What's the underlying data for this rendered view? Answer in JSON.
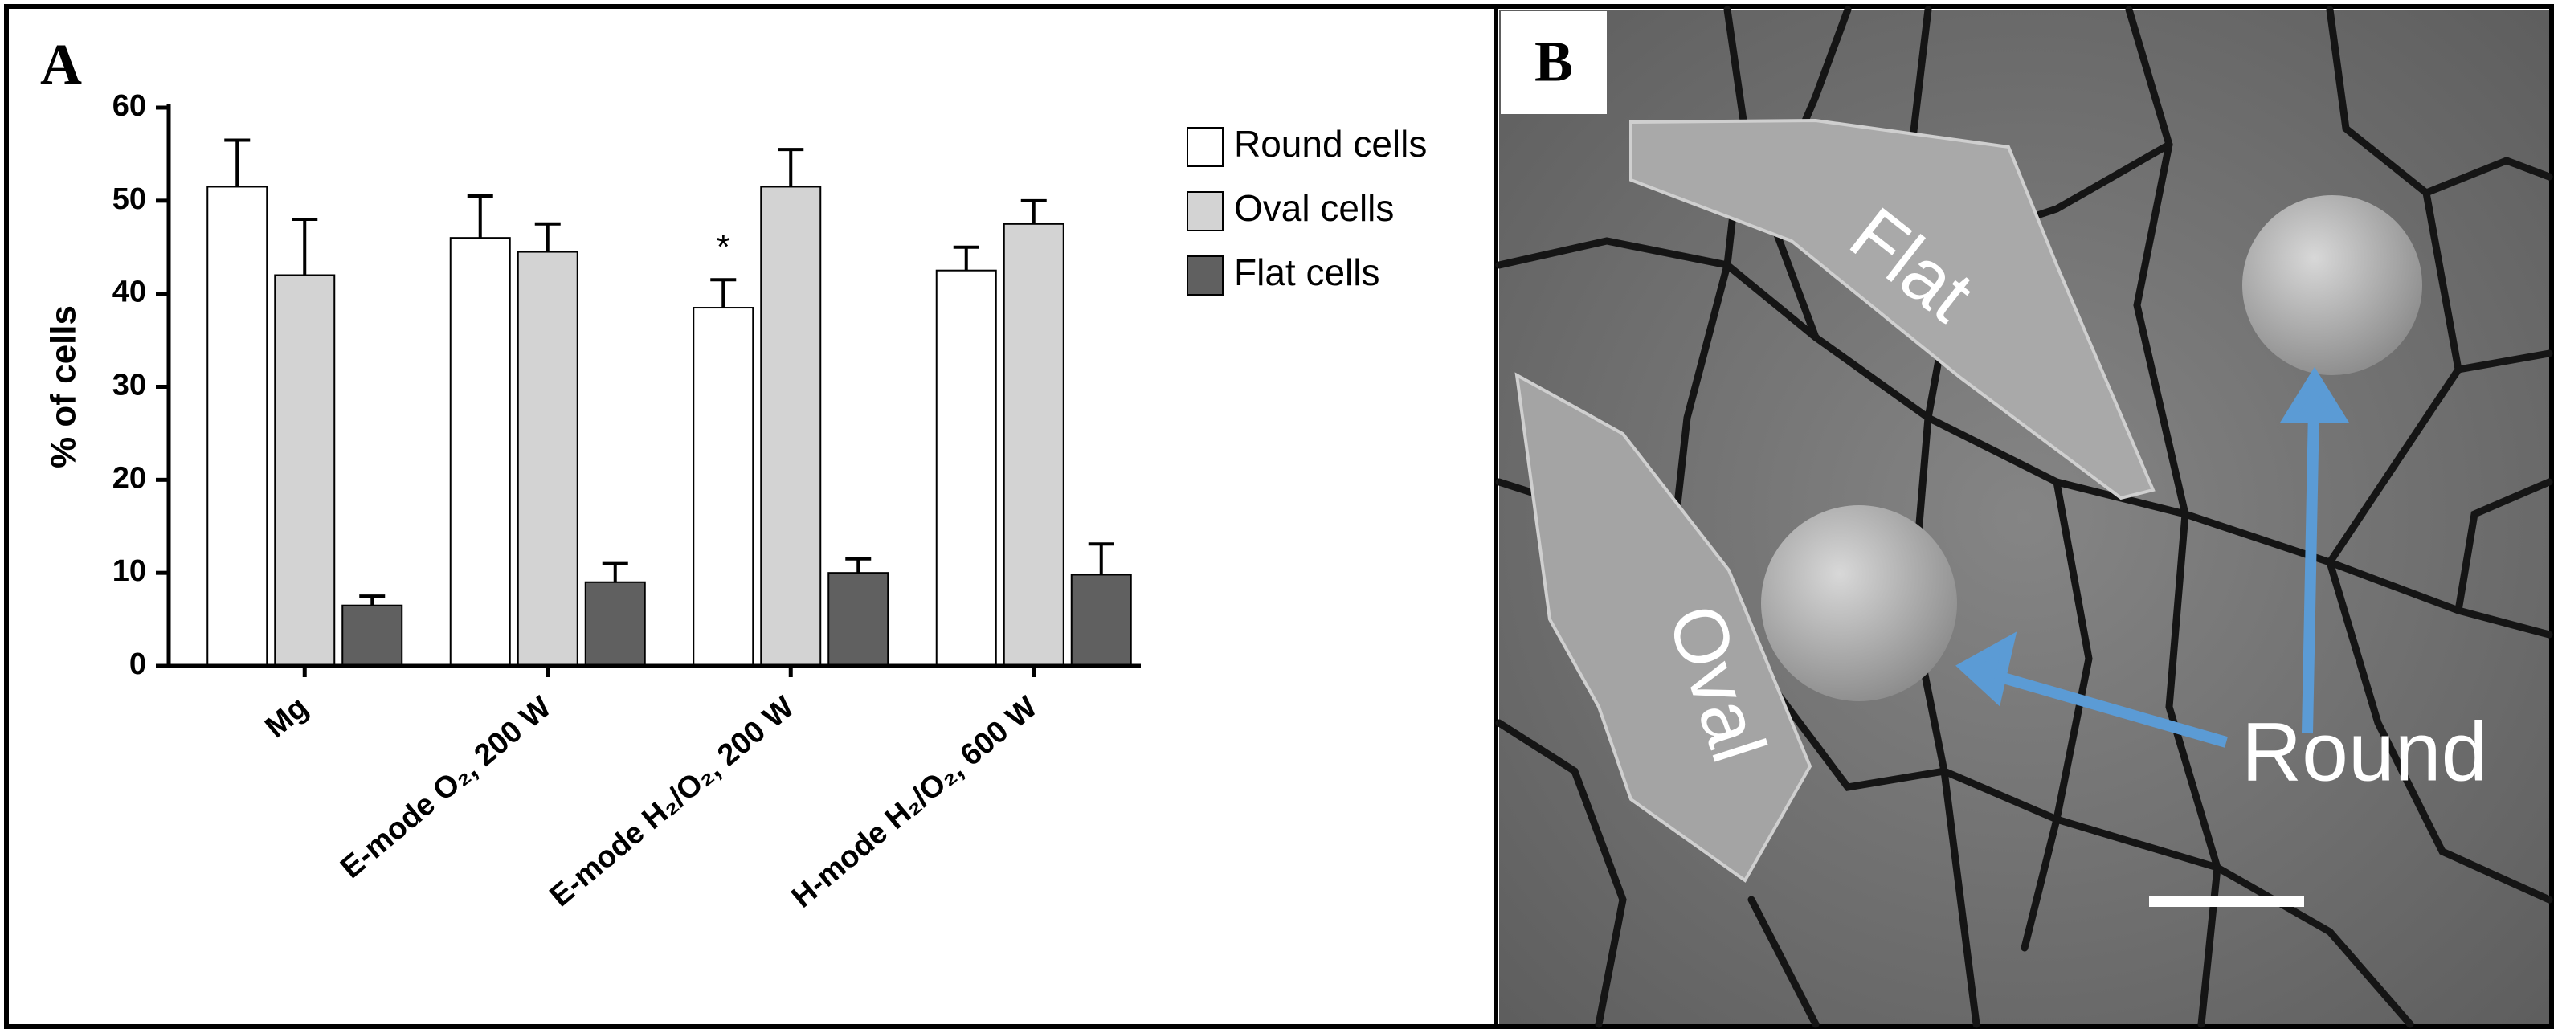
{
  "panels": [
    "A",
    "B"
  ],
  "chart_data": {
    "type": "bar",
    "y_label": "% of cells",
    "categories": [
      "Mg",
      "E-mode O₂, 200 W",
      "E-mode H₂/O₂, 200 W",
      "H-mode H₂/O₂, 600 W"
    ],
    "series": [
      {
        "name": "Round cells",
        "color": "#ffffff",
        "values": [
          51.5,
          46,
          38.5,
          42.5
        ],
        "errors": [
          5,
          4.5,
          3,
          2.5
        ]
      },
      {
        "name": "Oval cells",
        "color": "#d3d3d3",
        "values": [
          42,
          44.5,
          51.5,
          47.5
        ],
        "errors": [
          6,
          3,
          4,
          2.5
        ]
      },
      {
        "name": "Flat cells",
        "color": "#606060",
        "values": [
          6.5,
          9,
          10,
          9.8
        ],
        "errors": [
          1,
          2,
          1.5,
          3.3
        ]
      }
    ],
    "annotations": [
      {
        "text": "*",
        "category": "E-mode H₂/O₂, 200 W",
        "series": "Round cells"
      }
    ],
    "ylim": [
      0,
      60
    ],
    "yticks": [
      0,
      10,
      20,
      30,
      40,
      50,
      60
    ],
    "legend": "right"
  },
  "micrograph": {
    "labels": {
      "flat": "Flat",
      "oval": "Oval",
      "round": "Round"
    }
  }
}
